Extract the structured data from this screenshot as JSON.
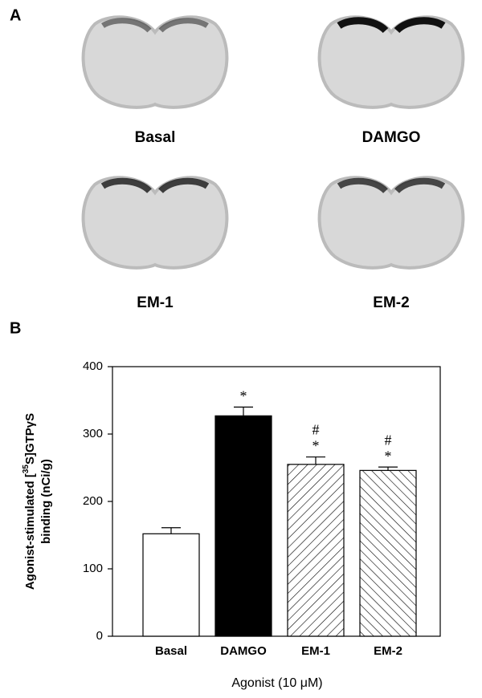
{
  "panel_labels": [
    "A",
    "B"
  ],
  "images": [
    {
      "caption": "Basal"
    },
    {
      "caption": "DAMGO"
    },
    {
      "caption": "EM-1"
    },
    {
      "caption": "EM-2"
    }
  ],
  "chart_data": {
    "type": "bar",
    "categories": [
      "Basal",
      "DAMGO",
      "EM-1",
      "EM-2"
    ],
    "values": [
      152,
      327,
      255,
      246
    ],
    "errors": [
      9,
      13,
      11,
      5
    ],
    "fills": [
      "white",
      "black",
      "hatch-up",
      "hatch-down"
    ],
    "annotations": [
      [],
      [
        "*"
      ],
      [
        "#",
        "*"
      ],
      [
        "#",
        "*"
      ]
    ],
    "ylabel": [
      "Agonist-stimulated [",
      "35",
      "S]GTPγS",
      "binding (nCi/g)"
    ],
    "xlabel": "Agonist (10 μM)",
    "ylim": [
      0,
      400
    ],
    "yticks": [
      0,
      100,
      200,
      300,
      400
    ]
  }
}
